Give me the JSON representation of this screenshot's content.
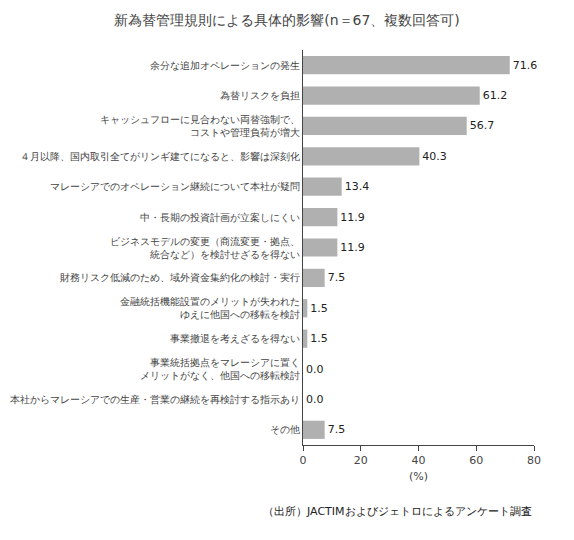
{
  "chart_data": {
    "type": "bar",
    "orientation": "horizontal",
    "title": "新為替管理規則による具体的影響(n＝67、複数回答可)",
    "categories": [
      "余分な追加オペレーションの発生",
      "為替リスクを負担",
      "キャッシュフローに見合わない両替強制で、\nコストや管理負荷が増大",
      "４月以降、国内取引全てがリンギ建てになると、影響は深刻化",
      "マレーシアでのオペレーション継続について本社が疑問",
      "中・長期の投資計画が立案しにくい",
      "ビジネスモデルの変更（商流変更・拠点、\n統合など）を検討せざるを得ない",
      "財務リスク低減のため、域外資金集約化の検討・実行",
      "金融統括機能設置のメリットが失われた\nゆえに他国への移転を検討",
      "事業撤退を考えざるを得ない",
      "事業統括拠点をマレーシアに置く\nメリットがなく、他国への移転検討",
      "本社からマレーシアでの生産・営業の継続を再検討する指示あり",
      "その他"
    ],
    "values": [
      71.6,
      61.2,
      56.7,
      40.3,
      13.4,
      11.9,
      11.9,
      7.5,
      1.5,
      1.5,
      0.0,
      0.0,
      7.5
    ],
    "value_labels": [
      "71.6",
      "61.2",
      "56.7",
      "40.3",
      "13.4",
      "11.9",
      "11.9",
      "7.5",
      "1.5",
      "1.5",
      "0.0",
      "0.0",
      "7.5"
    ],
    "data_labels": true,
    "color": "#b0b0b0",
    "xlabel": "(%)",
    "xlim": [
      0,
      80
    ],
    "xticks": [
      0,
      20,
      40,
      60,
      80
    ],
    "grid": false,
    "annotations": [
      "（出所）JACTIMおよびジェトロによるアンケート調査"
    ]
  }
}
